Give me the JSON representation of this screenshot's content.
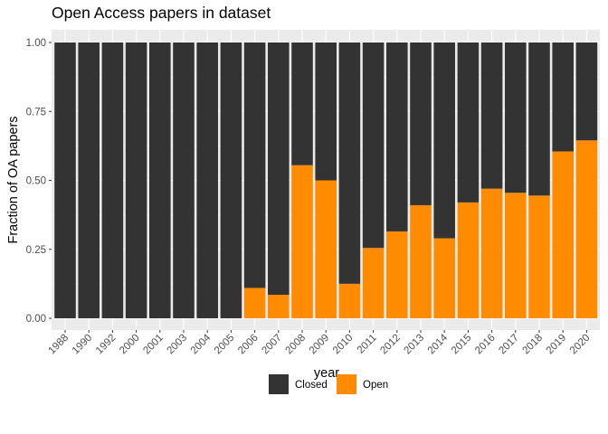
{
  "chart_data": {
    "type": "bar",
    "stacked": true,
    "normalized": true,
    "title": "Open Access papers in dataset",
    "xlabel": "year",
    "ylabel": "Fraction of OA papers",
    "ylim": [
      0,
      1
    ],
    "yticks": [
      "0.00",
      "0.25",
      "0.50",
      "0.75",
      "1.00"
    ],
    "grid": true,
    "legend_position": "bottom",
    "categories": [
      "1988",
      "1990",
      "1992",
      "2000",
      "2001",
      "2003",
      "2004",
      "2005",
      "2006",
      "2007",
      "2008",
      "2009",
      "2010",
      "2011",
      "2012",
      "2013",
      "2014",
      "2015",
      "2016",
      "2017",
      "2018",
      "2019",
      "2020"
    ],
    "series": [
      {
        "name": "Closed",
        "color": "#333333",
        "values": [
          1.0,
          1.0,
          1.0,
          1.0,
          1.0,
          1.0,
          1.0,
          1.0,
          0.89,
          0.915,
          0.445,
          0.5,
          0.875,
          0.745,
          0.685,
          0.59,
          0.71,
          0.58,
          0.53,
          0.545,
          0.555,
          0.395,
          0.355
        ]
      },
      {
        "name": "Open",
        "color": "#ff8c00",
        "values": [
          0.0,
          0.0,
          0.0,
          0.0,
          0.0,
          0.0,
          0.0,
          0.0,
          0.11,
          0.085,
          0.555,
          0.5,
          0.125,
          0.255,
          0.315,
          0.41,
          0.29,
          0.42,
          0.47,
          0.455,
          0.445,
          0.605,
          0.645
        ]
      }
    ]
  }
}
